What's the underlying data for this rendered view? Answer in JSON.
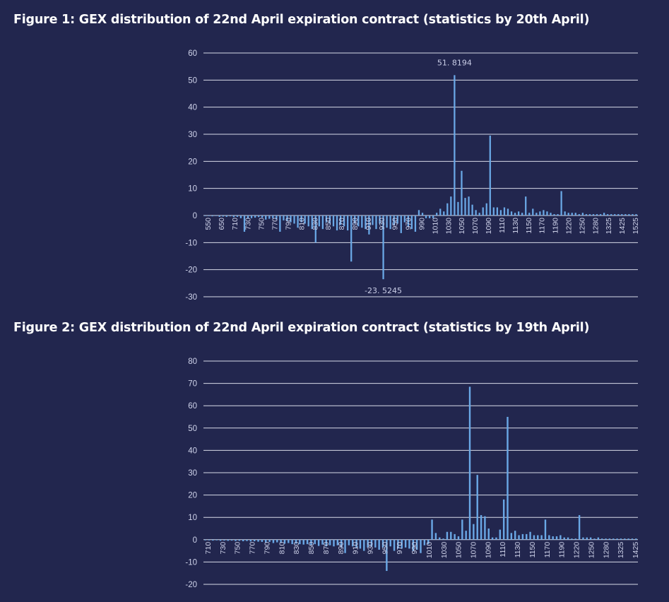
{
  "figures": {
    "fig1_title": "Figure 1: GEX distribution of 22nd April expiration contract (statistics by 20th April)",
    "fig2_title": "Figure 2: GEX distribution of 22nd April expiration contract (statistics by 19th April)"
  },
  "colors": {
    "background": "#22264e",
    "bars": "#6aa8e6",
    "gridlines": "#d7dae8",
    "text": "#ffffff"
  },
  "chart_data": [
    {
      "type": "bar",
      "title": "Figure 1: GEX distribution of 22nd April expiration contract (statistics by 20th April)",
      "ylim": [
        -30,
        60
      ],
      "yticks": [
        -30,
        -20,
        -10,
        0,
        10,
        20,
        30,
        40,
        50,
        60
      ],
      "grid": true,
      "xtick_labels": [
        "550",
        "650",
        "710",
        "730",
        "750",
        "770",
        "790",
        "810",
        "830",
        "850",
        "870",
        "890",
        "910",
        "930",
        "950",
        "970",
        "990",
        "1010",
        "1030",
        "1050",
        "1070",
        "1090",
        "1110",
        "1130",
        "1150",
        "1170",
        "1190",
        "1220",
        "1250",
        "1280",
        "1325",
        "1425",
        "1525"
      ],
      "data_labels": [
        {
          "text": "51. 8194",
          "x": 1050,
          "y": 51.8194
        },
        {
          "text": "-23. 5245",
          "x": 950,
          "y": -23.5245
        }
      ],
      "x": [
        550,
        600,
        650,
        680,
        710,
        715,
        720,
        730,
        740,
        745,
        750,
        755,
        760,
        765,
        770,
        775,
        780,
        785,
        790,
        795,
        800,
        805,
        810,
        815,
        820,
        825,
        830,
        835,
        840,
        845,
        850,
        855,
        860,
        865,
        870,
        875,
        880,
        885,
        890,
        895,
        900,
        905,
        910,
        915,
        920,
        925,
        930,
        935,
        940,
        945,
        950,
        955,
        960,
        965,
        970,
        975,
        980,
        985,
        990,
        995,
        1000,
        1005,
        1010,
        1015,
        1020,
        1025,
        1030,
        1035,
        1040,
        1045,
        1050,
        1055,
        1060,
        1065,
        1070,
        1075,
        1080,
        1085,
        1090,
        1095,
        1100,
        1105,
        1110,
        1115,
        1120,
        1125,
        1130,
        1135,
        1140,
        1145,
        1150,
        1155,
        1160,
        1165,
        1170,
        1175,
        1180,
        1185,
        1190,
        1195,
        1200,
        1210,
        1220,
        1230,
        1240,
        1250,
        1260,
        1270,
        1280,
        1290,
        1300,
        1310,
        1325,
        1350,
        1375,
        1400,
        1425,
        1450,
        1475,
        1500,
        1525,
        1550
      ],
      "values": [
        -0.2,
        -0.2,
        -0.3,
        -0.2,
        -0.5,
        -0.4,
        -0.5,
        -0.3,
        -0.6,
        -0.5,
        -1.0,
        -6.0,
        -1.2,
        -1.0,
        -0.8,
        -0.6,
        -0.8,
        -1.5,
        -1.2,
        -1.0,
        -1.5,
        -6.0,
        -1.8,
        -2.0,
        -2.5,
        -3.0,
        -4.5,
        -2.5,
        -3.0,
        -4.0,
        -5.0,
        -10.0,
        -4.0,
        -5.0,
        -2.5,
        -3.0,
        -4.0,
        -5.5,
        -3.5,
        -4.0,
        -5.5,
        -17.0,
        -3.0,
        -4.0,
        -4.5,
        -5.0,
        -7.0,
        -3.5,
        -5.0,
        -3.0,
        -23.5245,
        -4.5,
        -5.0,
        -3.5,
        -3.0,
        -6.5,
        -2.5,
        -4.0,
        -5.0,
        -6.0,
        2.0,
        1.0,
        -1.0,
        -1.0,
        -1.0,
        1.0,
        2.5,
        1.5,
        4.5,
        7.0,
        51.8194,
        5.0,
        16.5,
        6.5,
        7.0,
        4.0,
        2.0,
        1.0,
        3.0,
        4.5,
        29.5,
        3.0,
        3.0,
        2.0,
        3.0,
        2.5,
        1.5,
        1.0,
        1.5,
        1.0,
        7.0,
        1.0,
        2.5,
        1.0,
        1.5,
        2.0,
        1.5,
        1.0,
        0.5,
        0.5,
        9.0,
        1.5,
        1.0,
        1.0,
        1.0,
        0.5,
        1.0,
        0.5,
        0.5,
        0.5,
        0.5,
        0.5,
        1.0,
        0.5,
        0.5,
        0.5,
        0.5,
        0.5,
        0.5,
        0.5,
        0.5,
        0.5
      ]
    },
    {
      "type": "bar",
      "title": "Figure 2: GEX distribution of 22nd April expiration contract (statistics by 19th April)",
      "ylim": [
        -20,
        80
      ],
      "yticks": [
        -20,
        -10,
        0,
        10,
        20,
        30,
        40,
        50,
        60,
        70,
        80
      ],
      "grid": true,
      "xtick_labels": [
        "710",
        "730",
        "750",
        "770",
        "790",
        "810",
        "830",
        "850",
        "870",
        "890",
        "910",
        "930",
        "950",
        "970",
        "990",
        "1010",
        "1030",
        "1050",
        "1070",
        "1090",
        "1110",
        "1130",
        "1150",
        "1170",
        "1190",
        "1220",
        "1250",
        "1280",
        "1325",
        "1425"
      ],
      "x": [
        710,
        715,
        720,
        725,
        730,
        735,
        740,
        745,
        750,
        755,
        760,
        765,
        770,
        775,
        780,
        785,
        790,
        795,
        800,
        805,
        810,
        815,
        820,
        825,
        830,
        835,
        840,
        845,
        850,
        855,
        860,
        865,
        870,
        875,
        880,
        885,
        890,
        895,
        900,
        905,
        910,
        915,
        920,
        925,
        930,
        935,
        940,
        945,
        950,
        955,
        960,
        965,
        970,
        975,
        980,
        985,
        990,
        995,
        1000,
        1005,
        1010,
        1015,
        1020,
        1025,
        1030,
        1035,
        1040,
        1045,
        1050,
        1055,
        1060,
        1065,
        1070,
        1075,
        1080,
        1085,
        1090,
        1095,
        1100,
        1105,
        1110,
        1115,
        1120,
        1125,
        1130,
        1135,
        1140,
        1145,
        1150,
        1155,
        1160,
        1165,
        1170,
        1175,
        1180,
        1185,
        1190,
        1195,
        1200,
        1210,
        1220,
        1230,
        1240,
        1250,
        1260,
        1270,
        1280,
        1290,
        1300,
        1310,
        1325,
        1350,
        1375,
        1400,
        1425
      ],
      "values": [
        -0.3,
        -0.3,
        -0.4,
        -0.3,
        -0.5,
        -0.4,
        -0.5,
        -0.4,
        -0.6,
        -0.5,
        -0.7,
        -0.6,
        -0.8,
        -0.7,
        -0.9,
        -1.0,
        -1.2,
        -1.0,
        -1.5,
        -1.2,
        -1.5,
        -1.8,
        -1.5,
        -2.0,
        -1.8,
        -2.0,
        -2.2,
        -2.0,
        -2.5,
        -2.0,
        -2.8,
        -2.2,
        -3.0,
        -2.5,
        -3.0,
        -2.5,
        -3.5,
        -6.0,
        -2.5,
        -3.0,
        -3.5,
        -4.0,
        -5.0,
        -3.5,
        -3.0,
        -3.5,
        -4.5,
        -3.5,
        -14.0,
        -3.0,
        -5.0,
        -4.0,
        -4.0,
        -3.5,
        -4.0,
        -5.0,
        -4.5,
        -6.0,
        -2.5,
        -2.0,
        9.0,
        3.0,
        1.0,
        0.5,
        3.5,
        3.5,
        2.5,
        1.5,
        9.0,
        4.0,
        68.5,
        7.0,
        29.0,
        11.0,
        10.5,
        5.0,
        1.0,
        1.0,
        4.5,
        18.0,
        55.0,
        3.0,
        4.0,
        2.0,
        2.5,
        2.5,
        3.5,
        2.0,
        2.0,
        2.0,
        9.0,
        2.0,
        1.5,
        1.5,
        2.0,
        1.0,
        1.0,
        0.5,
        0.5,
        11.0,
        1.0,
        1.0,
        1.0,
        0.5,
        1.0,
        0.5,
        0.5,
        0.5,
        0.5,
        0.5,
        0.5,
        0.5,
        0.5,
        0.5,
        0.5
      ]
    }
  ]
}
